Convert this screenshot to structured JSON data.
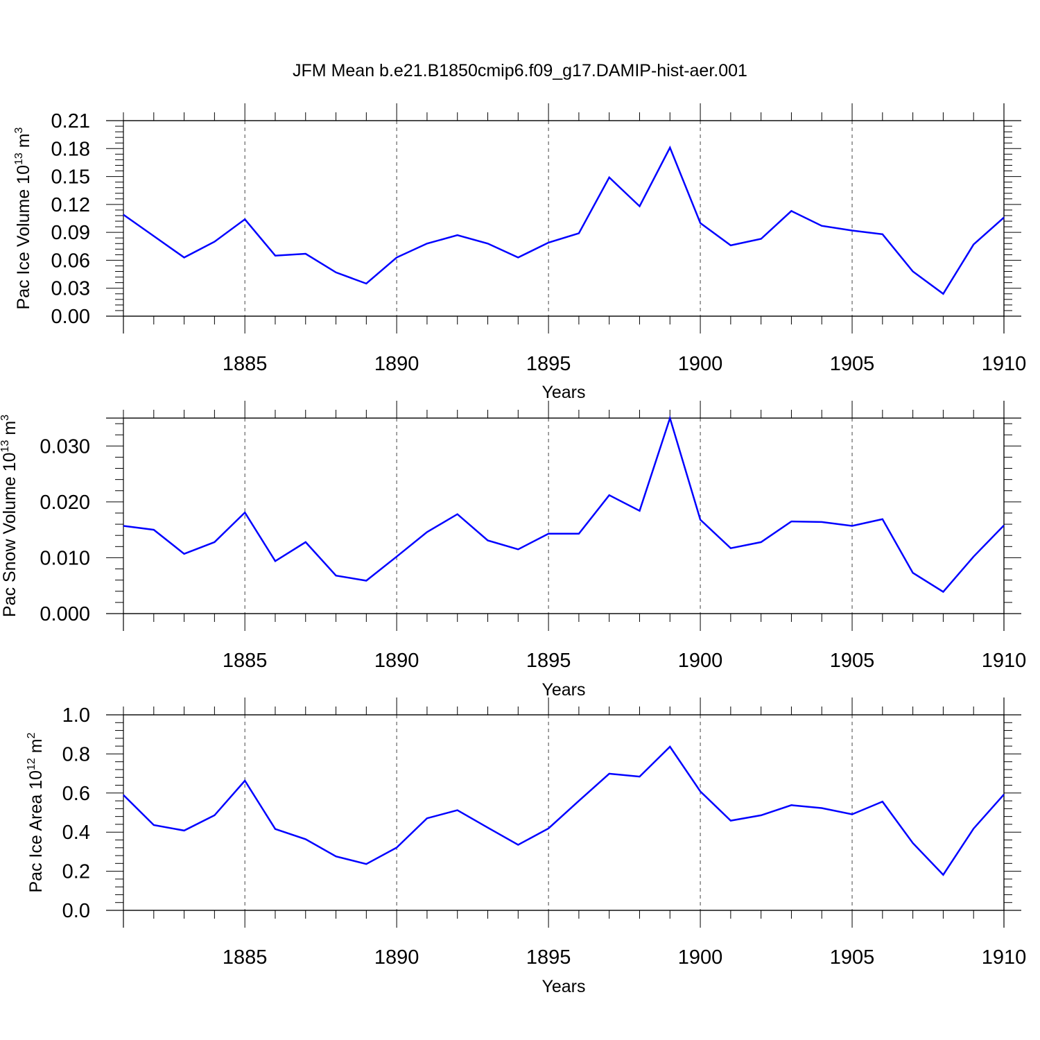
{
  "title": "JFM Mean b.e21.B1850cmip6.f09_g17.DAMIP-hist-aer.001",
  "chart_data": [
    {
      "type": "line",
      "ylabel": "Pac Ice Volume 10",
      "ylabel_exp": "13",
      "ylabel_unit": " m",
      "ylabel_unit_exp": "3",
      "xlabel": "Years",
      "xlim": [
        1881,
        1910
      ],
      "ylim": [
        0,
        0.21
      ],
      "ytick_values": [
        0,
        0.03,
        0.06,
        0.09,
        0.12,
        0.15,
        0.18,
        0.21
      ],
      "ytick_labels": [
        "0.00",
        "0.03",
        "0.06",
        "0.09",
        "0.12",
        "0.15",
        "0.18",
        "0.21"
      ],
      "xtick_labels": [
        "1885",
        "1890",
        "1895",
        "1900",
        "1905",
        "1910"
      ],
      "xtick_values": [
        1885,
        1890,
        1895,
        1900,
        1905,
        1910
      ],
      "grid_x": true,
      "color": "#0000ff",
      "x": [
        1881,
        1882,
        1883,
        1884,
        1885,
        1886,
        1887,
        1888,
        1889,
        1890,
        1891,
        1892,
        1893,
        1894,
        1895,
        1896,
        1897,
        1898,
        1899,
        1900,
        1901,
        1902,
        1903,
        1904,
        1905,
        1906,
        1907,
        1908,
        1909,
        1910
      ],
      "values": [
        0.109,
        0.086,
        0.063,
        0.08,
        0.104,
        0.065,
        0.067,
        0.047,
        0.035,
        0.063,
        0.078,
        0.087,
        0.078,
        0.063,
        0.079,
        0.089,
        0.149,
        0.118,
        0.181,
        0.1,
        0.076,
        0.083,
        0.113,
        0.097,
        0.092,
        0.088,
        0.048,
        0.024,
        0.077,
        0.106
      ]
    },
    {
      "type": "line",
      "ylabel": "Pac Snow Volume 10",
      "ylabel_exp": "13",
      "ylabel_unit": " m",
      "ylabel_unit_exp": "3",
      "xlabel": "Years",
      "xlim": [
        1881,
        1910
      ],
      "ylim": [
        0,
        0.035
      ],
      "ytick_values": [
        0,
        0.01,
        0.02,
        0.03
      ],
      "ytick_labels": [
        "0.000",
        "0.010",
        "0.020",
        "0.030"
      ],
      "xtick_labels": [
        "1885",
        "1890",
        "1895",
        "1900",
        "1905",
        "1910"
      ],
      "xtick_values": [
        1885,
        1890,
        1895,
        1900,
        1905,
        1910
      ],
      "grid_x": true,
      "color": "#0000ff",
      "x": [
        1881,
        1882,
        1883,
        1884,
        1885,
        1886,
        1887,
        1888,
        1889,
        1890,
        1891,
        1892,
        1893,
        1894,
        1895,
        1896,
        1897,
        1898,
        1899,
        1900,
        1901,
        1902,
        1903,
        1904,
        1905,
        1906,
        1907,
        1908,
        1909,
        1910
      ],
      "values": [
        0.0157,
        0.015,
        0.0107,
        0.0128,
        0.0181,
        0.0094,
        0.0128,
        0.0068,
        0.0059,
        0.0102,
        0.0146,
        0.0178,
        0.0131,
        0.0115,
        0.0143,
        0.0143,
        0.0212,
        0.0184,
        0.035,
        0.0168,
        0.0117,
        0.0128,
        0.0165,
        0.0164,
        0.0157,
        0.0169,
        0.0073,
        0.0039,
        0.0102,
        0.0158
      ]
    },
    {
      "type": "line",
      "ylabel": "Pac Ice Area 10",
      "ylabel_exp": "12",
      "ylabel_unit": " m",
      "ylabel_unit_exp": "2",
      "xlabel": "Years",
      "xlim": [
        1881,
        1910
      ],
      "ylim": [
        0,
        1.0
      ],
      "ytick_values": [
        0,
        0.2,
        0.4,
        0.6,
        0.8,
        1.0
      ],
      "ytick_labels": [
        "0.0",
        "0.2",
        "0.4",
        "0.6",
        "0.8",
        "1.0"
      ],
      "xtick_labels": [
        "1885",
        "1890",
        "1895",
        "1900",
        "1905",
        "1910"
      ],
      "xtick_values": [
        1885,
        1890,
        1895,
        1900,
        1905,
        1910
      ],
      "grid_x": true,
      "color": "#0000ff",
      "x": [
        1881,
        1882,
        1883,
        1884,
        1885,
        1886,
        1887,
        1888,
        1889,
        1890,
        1891,
        1892,
        1893,
        1894,
        1895,
        1896,
        1897,
        1898,
        1899,
        1900,
        1901,
        1902,
        1903,
        1904,
        1905,
        1906,
        1907,
        1908,
        1909,
        1910
      ],
      "values": [
        0.59,
        0.436,
        0.408,
        0.486,
        0.663,
        0.416,
        0.364,
        0.276,
        0.237,
        0.321,
        0.471,
        0.512,
        0.423,
        0.335,
        0.419,
        0.56,
        0.699,
        0.684,
        0.837,
        0.608,
        0.459,
        0.486,
        0.538,
        0.523,
        0.491,
        0.556,
        0.344,
        0.182,
        0.418,
        0.593
      ]
    }
  ]
}
